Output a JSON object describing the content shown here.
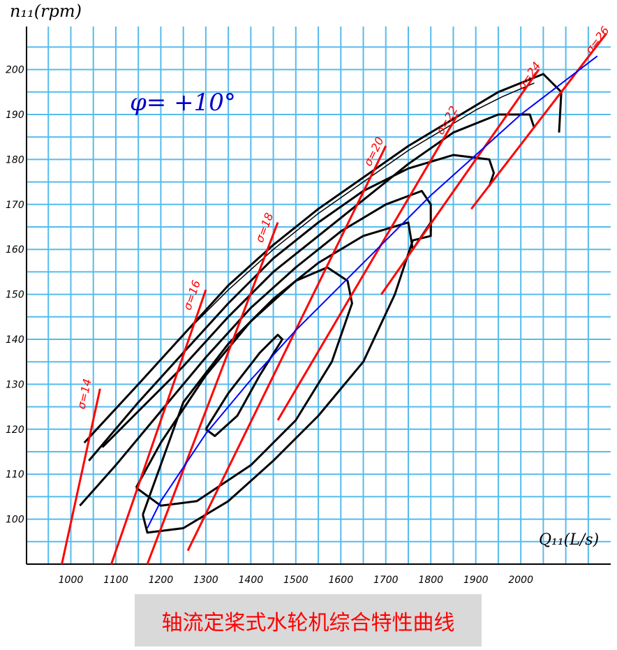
{
  "caption": "轴流定桨式水轮机综合特性曲线",
  "chart_data": {
    "type": "line",
    "title": "",
    "ylabel": "n₁₁(rpm)",
    "xlabel": "Q₁₁(L/s)",
    "annotation": "φ= +10°",
    "xlim": [
      900,
      2200
    ],
    "ylim": [
      90,
      200
    ],
    "x_ticks": [
      1000,
      1100,
      1200,
      1300,
      1400,
      1500,
      1600,
      1700,
      1800,
      1900,
      2000
    ],
    "y_ticks": [
      100,
      110,
      120,
      130,
      140,
      150,
      160,
      170,
      180,
      190,
      200
    ],
    "grid": true,
    "colors": {
      "grid": "#55bbee",
      "efficiency": "#000000",
      "cavitation": "#ff0000",
      "optimum": "#0000ff",
      "annotation": "#0000cc"
    },
    "efficiency_contours": [
      {
        "x": [
          1300,
          1320,
          1370,
          1420,
          1470,
          1460,
          1420,
          1350,
          1300
        ],
        "y": [
          120,
          118.5,
          123,
          132,
          140,
          141,
          137,
          128,
          120
        ]
      },
      {
        "x": [
          1145,
          1200,
          1280,
          1400,
          1500,
          1580,
          1625,
          1615,
          1570,
          1500,
          1400,
          1300,
          1200,
          1145
        ],
        "y": [
          107,
          103,
          104,
          112,
          122,
          135,
          148,
          153,
          156,
          153,
          144,
          132,
          117,
          107
        ]
      },
      {
        "x": [
          1160,
          1170,
          1250,
          1350,
          1450,
          1550,
          1650,
          1720,
          1760,
          1800,
          1800,
          1760,
          1750,
          1650,
          1550,
          1450,
          1350,
          1250,
          1160
        ],
        "y": [
          101,
          97,
          98,
          104,
          113,
          123,
          135,
          150,
          162,
          163,
          166,
          160,
          166,
          163,
          157,
          149,
          139,
          126,
          101
        ]
      },
      {
        "x": [
          1020,
          1100,
          1200,
          1300,
          1400,
          1500,
          1600,
          1700,
          1780,
          1800,
          1800
        ],
        "y": [
          103,
          112,
          124,
          136,
          147,
          156,
          164,
          170,
          173,
          170,
          164
        ]
      },
      {
        "x": [
          1040,
          1150,
          1250,
          1350,
          1450,
          1550,
          1650,
          1750,
          1850,
          1930,
          1940,
          1930
        ],
        "y": [
          113,
          126,
          137,
          148,
          158,
          166,
          173,
          178,
          181,
          180,
          177,
          174
        ]
      },
      {
        "x": [
          1070,
          1150,
          1250,
          1350,
          1450,
          1550,
          1650,
          1750,
          1850,
          1950,
          2020,
          2030
        ],
        "y": [
          116,
          124,
          134,
          145,
          155,
          163,
          171,
          179,
          186,
          190,
          190,
          187
        ]
      },
      {
        "x": [
          1030,
          1150,
          1250,
          1350,
          1450,
          1550,
          1650,
          1750,
          1850,
          1950,
          2050,
          2090,
          2085
        ],
        "y": [
          117,
          130,
          141,
          152,
          161,
          169,
          176,
          183,
          189,
          195,
          199,
          195,
          186
        ]
      },
      {
        "x": [
          1250,
          1350,
          1450,
          1550,
          1650,
          1750,
          1850,
          1900,
          1960,
          2030
        ],
        "y": [
          141,
          151,
          160,
          168,
          175,
          182,
          188,
          191,
          194,
          197
        ]
      }
    ],
    "cavitation_lines": [
      {
        "label": "σ=14",
        "x": [
          980,
          1065
        ],
        "y": [
          90,
          129
        ]
      },
      {
        "label": "σ=16",
        "x": [
          1090,
          1300
        ],
        "y": [
          90,
          151
        ]
      },
      {
        "label": "σ=18",
        "x": [
          1170,
          1460
        ],
        "y": [
          90,
          166
        ]
      },
      {
        "label": "σ=20",
        "x": [
          1260,
          1700
        ],
        "y": [
          93,
          183
        ]
      },
      {
        "label": "σ=22",
        "x": [
          1460,
          1860
        ],
        "y": [
          122,
          190
        ]
      },
      {
        "label": "σ=24",
        "x": [
          1690,
          2040
        ],
        "y": [
          150,
          200
        ]
      },
      {
        "label": "σ=26",
        "x": [
          1890,
          2190
        ],
        "y": [
          169,
          208
        ]
      }
    ],
    "optimum_line": {
      "x": [
        1170,
        1200,
        1300,
        1400,
        1500,
        1600,
        1700,
        1800,
        1900,
        2000,
        2170
      ],
      "y": [
        98,
        104,
        119,
        131,
        142,
        152,
        162,
        172,
        181,
        190,
        203
      ]
    }
  }
}
